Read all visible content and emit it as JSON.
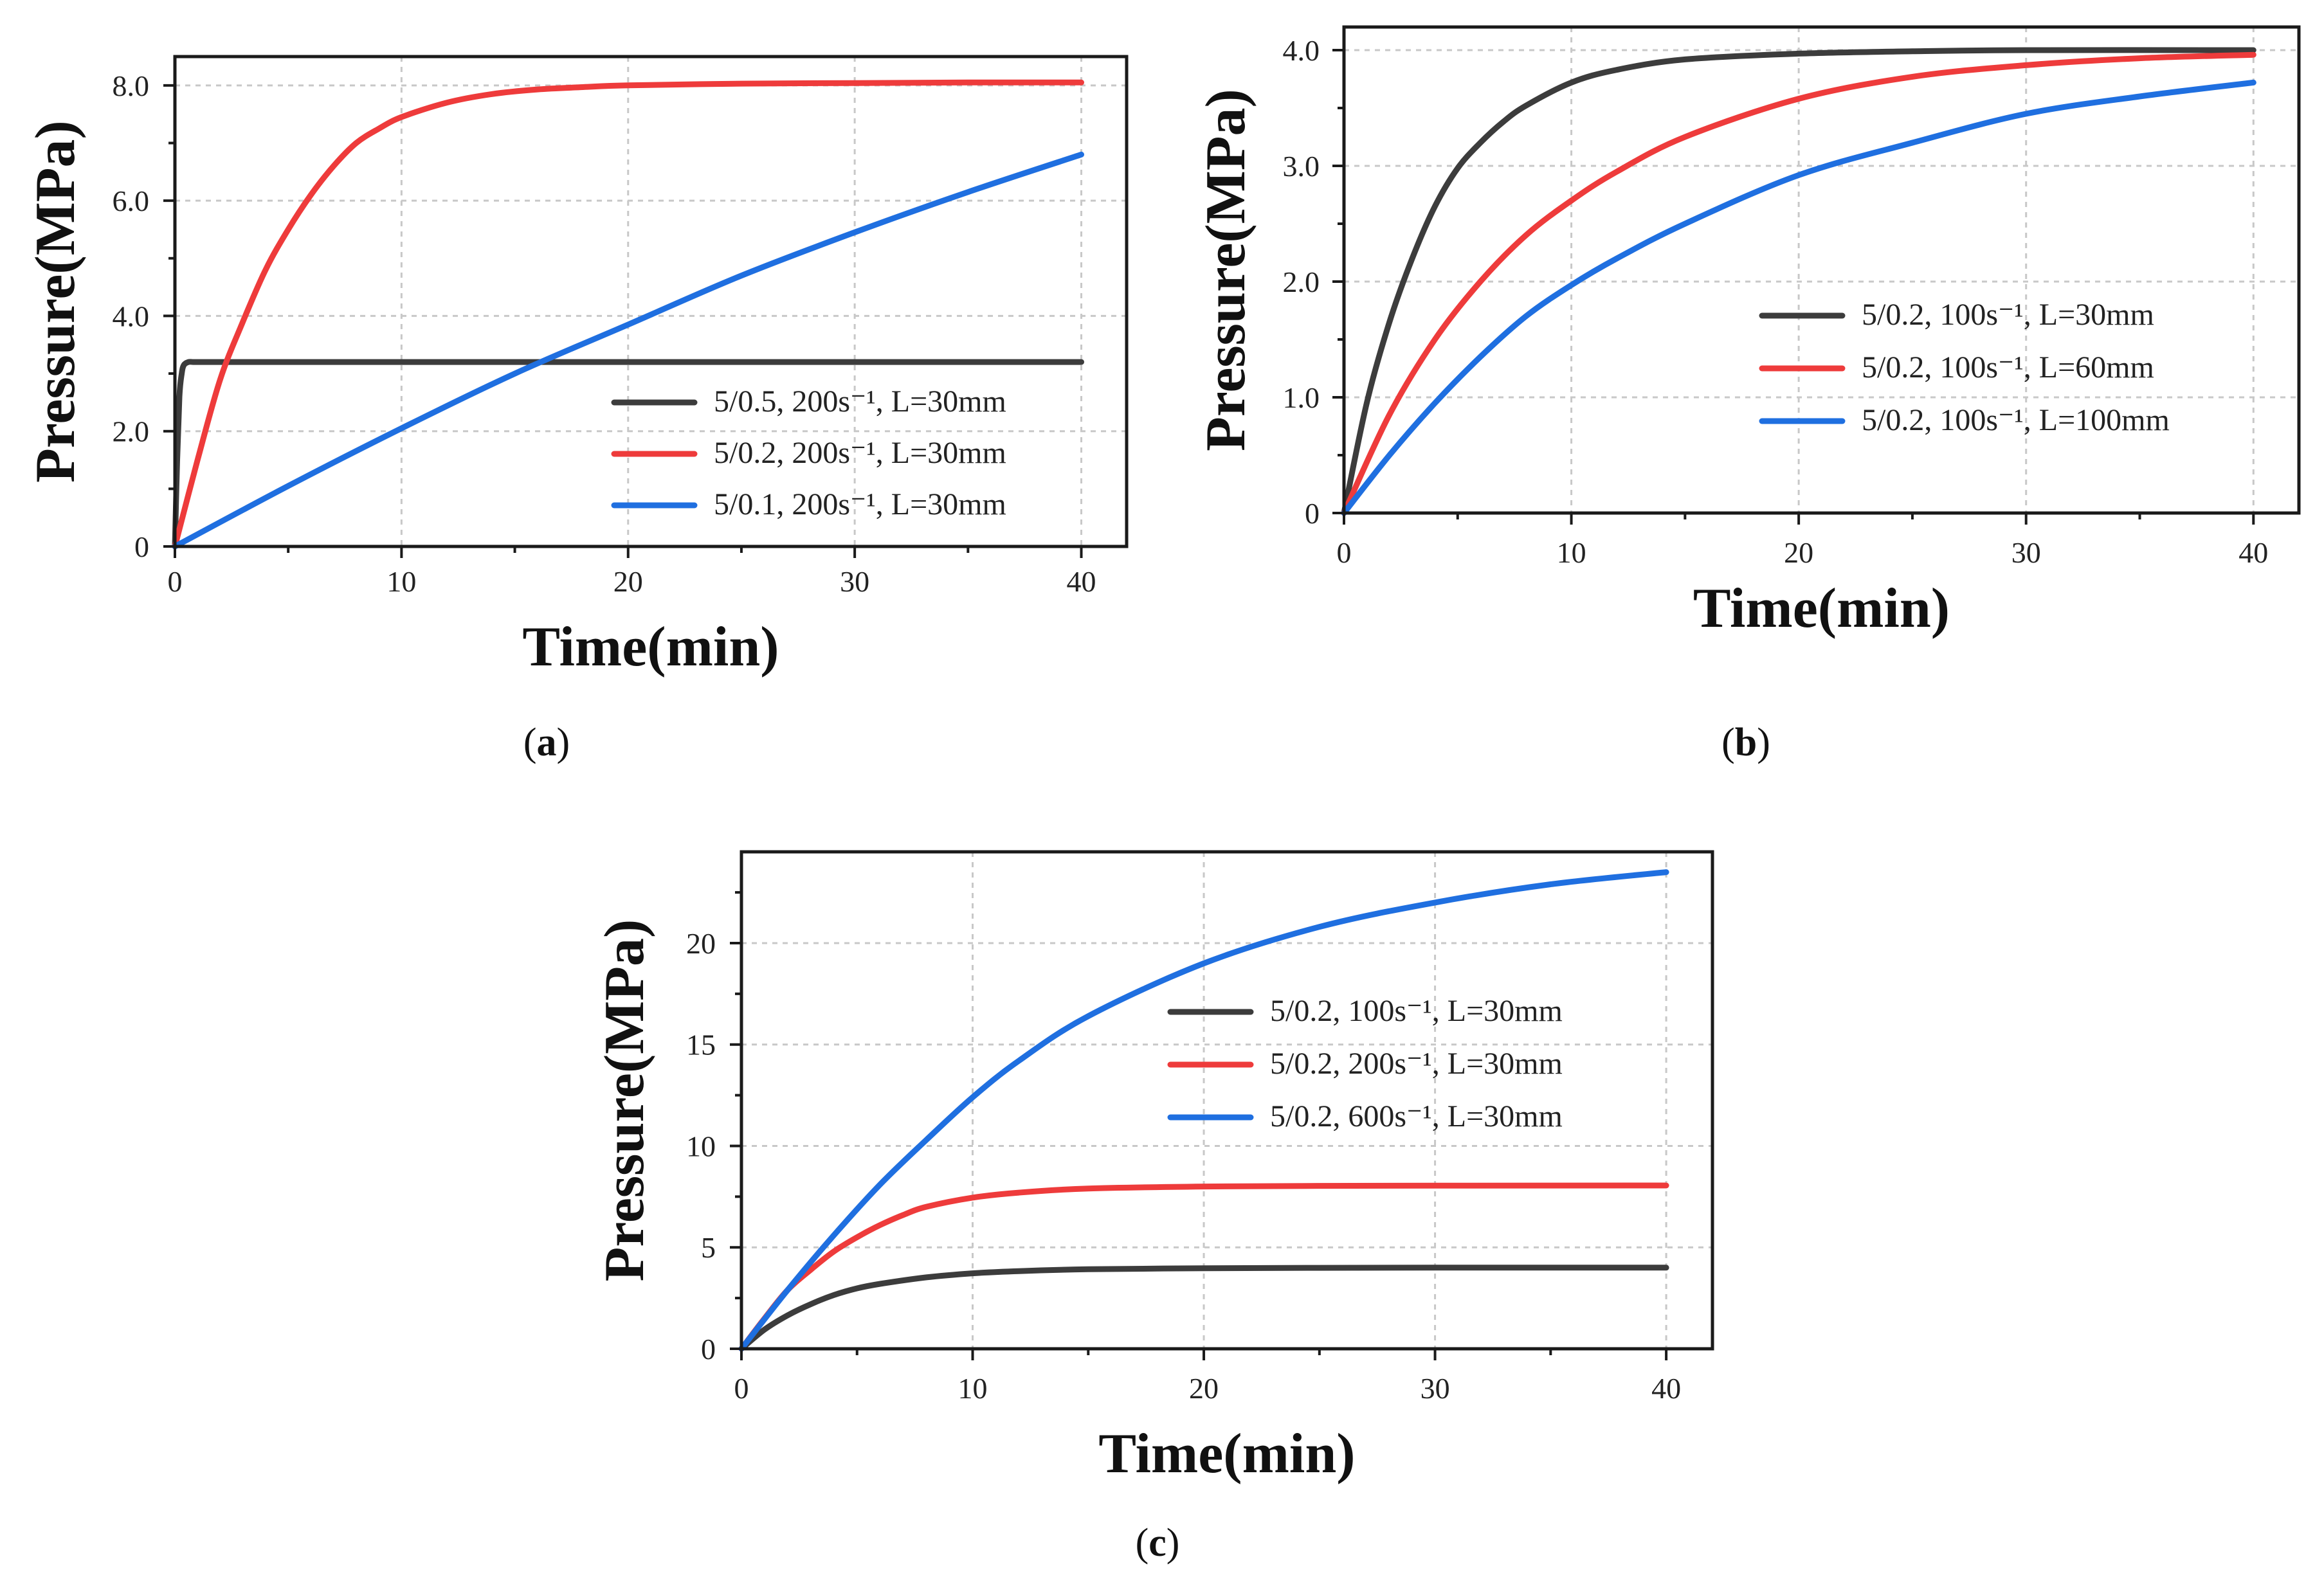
{
  "chart_data": [
    {
      "type": "line",
      "panel_label": "a",
      "xlabel": "Time(min)",
      "ylabel": "Pressure(MPa)",
      "xlim": [
        0,
        42
      ],
      "ylim": [
        0,
        8.5
      ],
      "xticks": [
        0,
        10,
        20,
        30,
        40
      ],
      "xtick_labels": [
        "0",
        "10",
        "20",
        "30",
        "40"
      ],
      "yticks": [
        0,
        2,
        4,
        6,
        8
      ],
      "ytick_labels": [
        "0",
        "2.0",
        "4.0",
        "6.0",
        "8.0"
      ],
      "grid": true,
      "legend_position": "lower-right",
      "series": [
        {
          "name": "5/0.5, 200s⁻¹, L=30mm",
          "color": "#3c3c3c",
          "x": [
            0,
            0.1,
            0.2,
            0.3,
            0.4,
            0.6,
            0.8,
            1.0,
            2,
            5,
            10,
            20,
            30,
            40
          ],
          "y": [
            0,
            1.5,
            2.6,
            3.0,
            3.15,
            3.2,
            3.2,
            3.2,
            3.2,
            3.2,
            3.2,
            3.2,
            3.2,
            3.2
          ]
        },
        {
          "name": "5/0.2, 200s⁻¹, L=30mm",
          "color": "#ee3b3b",
          "x": [
            0,
            1,
            2,
            3,
            4,
            5,
            6,
            7,
            8,
            9,
            10,
            12,
            14,
            16,
            18,
            20,
            25,
            30,
            35,
            40
          ],
          "y": [
            0,
            1.5,
            2.9,
            3.9,
            4.8,
            5.5,
            6.1,
            6.6,
            7.0,
            7.25,
            7.45,
            7.7,
            7.85,
            7.93,
            7.97,
            8.0,
            8.03,
            8.04,
            8.05,
            8.05
          ]
        },
        {
          "name": "5/0.1, 200s⁻¹, L=30mm",
          "color": "#1f6fe0",
          "x": [
            0,
            5,
            10,
            15,
            20,
            25,
            30,
            35,
            40
          ],
          "y": [
            0,
            1.05,
            2.05,
            3.0,
            3.85,
            4.7,
            5.45,
            6.15,
            6.8
          ]
        }
      ]
    },
    {
      "type": "line",
      "panel_label": "b",
      "xlabel": "Time(min)",
      "ylabel": "Pressure(MPa)",
      "xlim": [
        0,
        42
      ],
      "ylim": [
        0,
        4.2
      ],
      "xticks": [
        0,
        10,
        20,
        30,
        40
      ],
      "xtick_labels": [
        "0",
        "10",
        "20",
        "30",
        "40"
      ],
      "yticks": [
        0,
        1,
        2,
        3,
        4
      ],
      "ytick_labels": [
        "0",
        "1.0",
        "2.0",
        "3.0",
        "4.0"
      ],
      "grid": true,
      "legend_position": "center-right",
      "series": [
        {
          "name": "5/0.2, 100s⁻¹, L=30mm",
          "color": "#3c3c3c",
          "x": [
            0,
            1,
            2,
            3,
            4,
            5,
            6,
            7,
            8,
            10,
            12,
            15,
            20,
            25,
            30,
            40
          ],
          "y": [
            0,
            0.95,
            1.65,
            2.2,
            2.65,
            2.98,
            3.2,
            3.38,
            3.52,
            3.72,
            3.83,
            3.92,
            3.97,
            3.99,
            4.0,
            4.0
          ]
        },
        {
          "name": "5/0.2, 100s⁻¹, L=60mm",
          "color": "#ee3b3b",
          "x": [
            0,
            2,
            4,
            6,
            8,
            10,
            12,
            15,
            20,
            25,
            30,
            35,
            40
          ],
          "y": [
            0,
            0.85,
            1.5,
            2.0,
            2.4,
            2.7,
            2.95,
            3.25,
            3.58,
            3.77,
            3.87,
            3.93,
            3.96
          ]
        },
        {
          "name": "5/0.2, 100s⁻¹, L=100mm",
          "color": "#1f6fe0",
          "x": [
            0,
            2,
            4,
            6,
            8,
            10,
            12,
            15,
            20,
            25,
            30,
            35,
            40
          ],
          "y": [
            0,
            0.5,
            0.95,
            1.35,
            1.7,
            1.97,
            2.2,
            2.5,
            2.92,
            3.2,
            3.45,
            3.6,
            3.72
          ]
        }
      ]
    },
    {
      "type": "line",
      "panel_label": "c",
      "xlabel": "Time(min)",
      "ylabel": "Pressure(MPa)",
      "xlim": [
        0,
        42
      ],
      "ylim": [
        0,
        24.5
      ],
      "xticks": [
        0,
        10,
        20,
        30,
        40
      ],
      "xtick_labels": [
        "0",
        "10",
        "20",
        "30",
        "40"
      ],
      "yticks": [
        0,
        5,
        10,
        15,
        20
      ],
      "ytick_labels": [
        "0",
        "5",
        "10",
        "15",
        "20"
      ],
      "grid": true,
      "legend_position": "upper-right",
      "series": [
        {
          "name": "5/0.2, 100s⁻¹, L=30mm",
          "color": "#3c3c3c",
          "x": [
            0,
            1,
            2,
            3,
            4,
            5,
            6,
            8,
            10,
            12,
            15,
            20,
            25,
            30,
            40
          ],
          "y": [
            0,
            0.95,
            1.65,
            2.2,
            2.65,
            2.98,
            3.2,
            3.52,
            3.72,
            3.83,
            3.92,
            3.97,
            3.99,
            4.0,
            4.0
          ]
        },
        {
          "name": "5/0.2, 200s⁻¹, L=30mm",
          "color": "#ee3b3b",
          "x": [
            0,
            1,
            2,
            3,
            4,
            5,
            6,
            7,
            8,
            10,
            12,
            15,
            20,
            25,
            30,
            40
          ],
          "y": [
            0,
            1.5,
            2.9,
            3.9,
            4.8,
            5.5,
            6.1,
            6.6,
            7.0,
            7.45,
            7.7,
            7.9,
            8.0,
            8.03,
            8.04,
            8.05
          ]
        },
        {
          "name": "5/0.2, 600s⁻¹, L=30mm",
          "color": "#1f6fe0",
          "x": [
            0,
            2,
            4,
            6,
            8,
            10,
            12,
            15,
            20,
            25,
            30,
            35,
            40
          ],
          "y": [
            0,
            2.9,
            5.6,
            8.1,
            10.3,
            12.4,
            14.2,
            16.4,
            19.0,
            20.8,
            22.0,
            22.9,
            23.5
          ]
        }
      ]
    }
  ]
}
